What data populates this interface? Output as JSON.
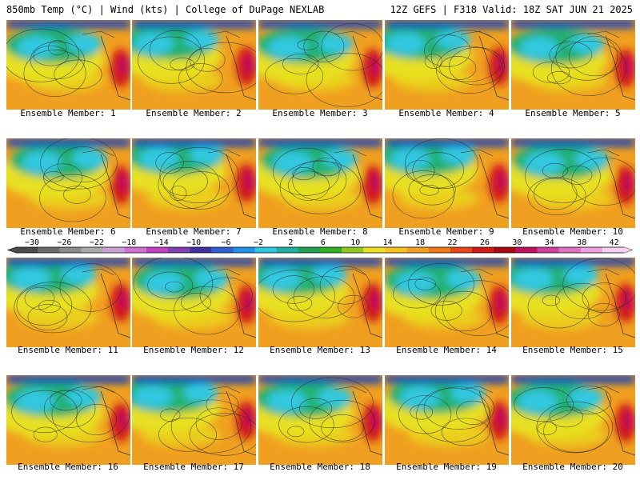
{
  "header": {
    "left": "850mb Temp (°C) | Wind (kts) | College of DuPage NEXLAB",
    "right": "12Z GEFS | F318 Valid: 18Z SAT JUN 21 2025"
  },
  "panels": [
    {
      "label": "Ensemble Member: 1"
    },
    {
      "label": "Ensemble Member: 2"
    },
    {
      "label": "Ensemble Member: 3"
    },
    {
      "label": "Ensemble Member: 4"
    },
    {
      "label": "Ensemble Member: 5"
    },
    {
      "label": "Ensemble Member: 6"
    },
    {
      "label": "Ensemble Member: 7"
    },
    {
      "label": "Ensemble Member: 8"
    },
    {
      "label": "Ensemble Member: 9"
    },
    {
      "label": "Ensemble Member: 10"
    },
    {
      "label": "Ensemble Member: 11"
    },
    {
      "label": "Ensemble Member: 12"
    },
    {
      "label": "Ensemble Member: 13"
    },
    {
      "label": "Ensemble Member: 14"
    },
    {
      "label": "Ensemble Member: 15"
    },
    {
      "label": "Ensemble Member: 16"
    },
    {
      "label": "Ensemble Member: 17"
    },
    {
      "label": "Ensemble Member: 18"
    },
    {
      "label": "Ensemble Member: 19"
    },
    {
      "label": "Ensemble Member: 20"
    }
  ],
  "colorbar": {
    "ticks": [
      "-30",
      "-26",
      "-22",
      "-18",
      "-14",
      "-10",
      "-6",
      "-2",
      "2",
      "6",
      "10",
      "14",
      "18",
      "22",
      "26",
      "30",
      "34",
      "38",
      "42"
    ],
    "colors": [
      "#4a4a4a",
      "#6a6a6a",
      "#8a8a8a",
      "#aaaaaa",
      "#c9a0d8",
      "#d070d0",
      "#c040c0",
      "#8040b0",
      "#4030a0",
      "#3060d0",
      "#2090e8",
      "#30c8e0",
      "#20b0a0",
      "#20a050",
      "#30b020",
      "#90c820",
      "#e8e020",
      "#f8c020",
      "#f0a020",
      "#f07818",
      "#e84818",
      "#d01818",
      "#a80810",
      "#c01060",
      "#d040a0",
      "#e070c0",
      "#f0a0e0",
      "#f8d0f0"
    ]
  },
  "field_colors": {
    "cold": "#1040c0",
    "cool": "#30c8e0",
    "mild": "#20b070",
    "warm": "#e8e020",
    "hot": "#f0a020",
    "veryhot": "#d01818",
    "extreme": "#c01060"
  }
}
